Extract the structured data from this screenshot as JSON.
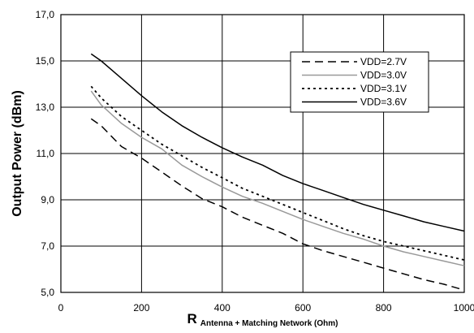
{
  "chart_data": {
    "type": "line",
    "title": "",
    "xlabel": "R",
    "xlabel_sub": "Antenna + Matching Network (Ohm)",
    "ylabel": "Output Power (dBm)",
    "xlim": [
      0,
      1000
    ],
    "ylim": [
      5.0,
      17.0
    ],
    "xticks": [
      0,
      200,
      400,
      600,
      800,
      1000
    ],
    "yticks": [
      "5,0",
      "7,0",
      "9,0",
      "11,0",
      "13,0",
      "15,0",
      "17,0"
    ],
    "grid": true,
    "legend_position": "top-right",
    "series": [
      {
        "name": "VDD=2.7V",
        "style": "long-dash",
        "color": "#000000",
        "x": [
          75,
          100,
          150,
          200,
          250,
          300,
          350,
          400,
          450,
          500,
          550,
          600,
          650,
          700,
          750,
          800,
          850,
          900,
          950,
          1000
        ],
        "y": [
          12.5,
          12.2,
          11.3,
          10.8,
          10.2,
          9.6,
          9.05,
          8.7,
          8.25,
          7.9,
          7.55,
          7.1,
          6.8,
          6.55,
          6.3,
          6.05,
          5.8,
          5.55,
          5.35,
          5.1
        ]
      },
      {
        "name": "VDD=3.0V",
        "style": "solid",
        "color": "#999999",
        "x": [
          75,
          100,
          150,
          200,
          250,
          300,
          350,
          400,
          450,
          500,
          550,
          600,
          650,
          700,
          750,
          800,
          850,
          900,
          950,
          1000
        ],
        "y": [
          13.7,
          13.1,
          12.3,
          11.7,
          11.2,
          10.5,
          10.0,
          9.55,
          9.15,
          8.85,
          8.5,
          8.15,
          7.85,
          7.55,
          7.3,
          7.0,
          6.75,
          6.55,
          6.35,
          6.15
        ]
      },
      {
        "name": "VDD=3.1V",
        "style": "dotted",
        "color": "#000000",
        "x": [
          75,
          100,
          150,
          200,
          250,
          300,
          350,
          400,
          450,
          500,
          550,
          600,
          650,
          700,
          750,
          800,
          850,
          900,
          950,
          1000
        ],
        "y": [
          13.9,
          13.4,
          12.6,
          12.0,
          11.4,
          10.9,
          10.4,
          9.95,
          9.5,
          9.15,
          8.8,
          8.45,
          8.1,
          7.75,
          7.45,
          7.2,
          7.0,
          6.8,
          6.6,
          6.4
        ]
      },
      {
        "name": "VDD=3.6V",
        "style": "solid",
        "color": "#000000",
        "x": [
          75,
          100,
          150,
          200,
          250,
          300,
          350,
          400,
          450,
          500,
          550,
          600,
          650,
          700,
          750,
          800,
          850,
          900,
          950,
          1000
        ],
        "y": [
          15.3,
          15.0,
          14.25,
          13.5,
          12.8,
          12.2,
          11.7,
          11.25,
          10.85,
          10.5,
          10.05,
          9.7,
          9.4,
          9.1,
          8.8,
          8.55,
          8.3,
          8.05,
          7.85,
          7.65
        ]
      }
    ]
  }
}
